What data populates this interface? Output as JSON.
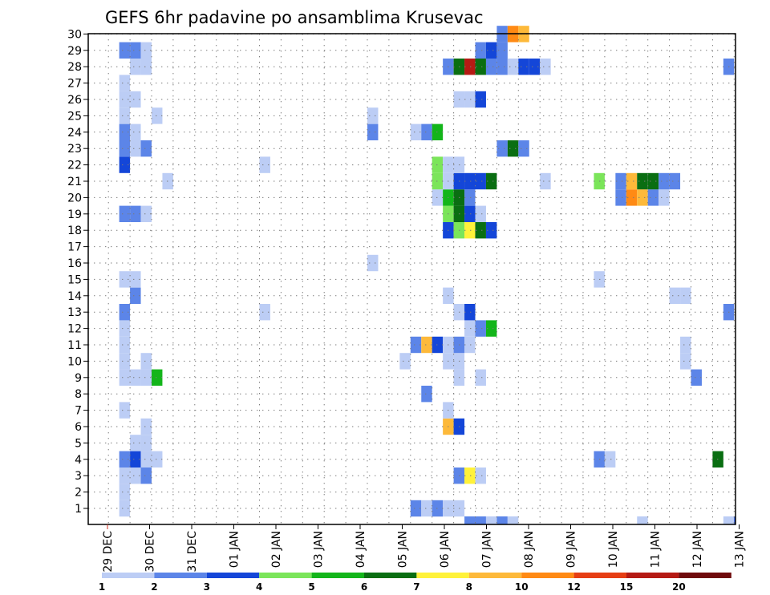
{
  "chart_data": {
    "type": "heatmap",
    "title": "GEFS 6hr padavine po ansamblima Krusevac",
    "xlabel": "",
    "ylabel": "",
    "x_unit": "6-hour steps from 29 DEC 00Z",
    "xlim": [
      0,
      60
    ],
    "y_tick_labels": [
      "1",
      "2",
      "3",
      "4",
      "5",
      "6",
      "7",
      "8",
      "9",
      "10",
      "11",
      "12",
      "13",
      "14",
      "15",
      "16",
      "17",
      "18",
      "19",
      "20",
      "21",
      "22",
      "23",
      "24",
      "25",
      "26",
      "27",
      "28",
      "29",
      "30"
    ],
    "ylim": [
      0,
      30
    ],
    "x_tick_labels": [
      "29 DEC",
      "30 DEC",
      "31 DEC",
      "01 JAN",
      "02 JAN",
      "03 JAN",
      "04 JAN",
      "05 JAN",
      "06 JAN",
      "07 JAN",
      "08 JAN",
      "09 JAN",
      "10 JAN",
      "11 JAN",
      "12 JAN",
      "13 JAN"
    ],
    "grid": true,
    "colorbar": {
      "ticks": [
        "1",
        "2",
        "3",
        "4",
        "5",
        "6",
        "7",
        "8",
        "10",
        "12",
        "15",
        "20"
      ],
      "colors": [
        "#bccdf5",
        "#5c85e8",
        "#1446d8",
        "#7be55a",
        "#13b51a",
        "#0a6e12",
        "#fff23a",
        "#fdb93a",
        "#ff8a14",
        "#e63e14",
        "#b51a14",
        "#6f0a0c"
      ]
    },
    "cells_note": "each cell: [member, step, color_class]; step i spans x from i to i+1",
    "cells": [
      [
        1,
        1,
        0
      ],
      [
        1,
        28,
        1
      ],
      [
        1,
        29,
        0
      ],
      [
        1,
        30,
        1
      ],
      [
        1,
        31,
        0
      ],
      [
        1,
        32,
        0
      ],
      [
        2,
        1,
        0
      ],
      [
        3,
        1,
        0
      ],
      [
        3,
        2,
        0
      ],
      [
        3,
        3,
        1
      ],
      [
        3,
        32,
        1
      ],
      [
        3,
        33,
        6
      ],
      [
        3,
        34,
        0
      ],
      [
        4,
        1,
        1
      ],
      [
        4,
        2,
        2
      ],
      [
        4,
        3,
        0
      ],
      [
        4,
        4,
        0
      ],
      [
        4,
        45,
        1
      ],
      [
        4,
        46,
        0
      ],
      [
        4,
        56,
        5
      ],
      [
        5,
        2,
        0
      ],
      [
        5,
        3,
        0
      ],
      [
        6,
        3,
        0
      ],
      [
        6,
        31,
        7
      ],
      [
        6,
        32,
        2
      ],
      [
        7,
        1,
        0
      ],
      [
        7,
        31,
        0
      ],
      [
        8,
        29,
        1
      ],
      [
        9,
        1,
        0
      ],
      [
        9,
        2,
        0
      ],
      [
        9,
        3,
        0
      ],
      [
        9,
        4,
        4
      ],
      [
        9,
        32,
        0
      ],
      [
        9,
        34,
        0
      ],
      [
        9,
        54,
        1
      ],
      [
        10,
        1,
        0
      ],
      [
        10,
        3,
        0
      ],
      [
        10,
        27,
        0
      ],
      [
        10,
        31,
        0
      ],
      [
        10,
        32,
        0
      ],
      [
        10,
        53,
        0
      ],
      [
        11,
        1,
        0
      ],
      [
        11,
        28,
        1
      ],
      [
        11,
        29,
        7
      ],
      [
        11,
        30,
        2
      ],
      [
        11,
        31,
        0
      ],
      [
        11,
        32,
        1
      ],
      [
        11,
        33,
        0
      ],
      [
        11,
        53,
        0
      ],
      [
        12,
        1,
        0
      ],
      [
        12,
        33,
        0
      ],
      [
        12,
        34,
        1
      ],
      [
        12,
        35,
        4
      ],
      [
        13,
        1,
        1
      ],
      [
        13,
        14,
        0
      ],
      [
        13,
        32,
        0
      ],
      [
        13,
        33,
        2
      ],
      [
        13,
        57,
        1
      ],
      [
        14,
        2,
        1
      ],
      [
        14,
        31,
        0
      ],
      [
        14,
        52,
        0
      ],
      [
        14,
        53,
        0
      ],
      [
        15,
        1,
        0
      ],
      [
        15,
        2,
        0
      ],
      [
        15,
        45,
        0
      ],
      [
        16,
        24,
        0
      ],
      [
        18,
        31,
        2
      ],
      [
        18,
        32,
        3
      ],
      [
        18,
        33,
        6
      ],
      [
        18,
        34,
        5
      ],
      [
        18,
        35,
        2
      ],
      [
        19,
        1,
        1
      ],
      [
        19,
        2,
        1
      ],
      [
        19,
        3,
        0
      ],
      [
        19,
        31,
        3
      ],
      [
        19,
        32,
        5
      ],
      [
        19,
        33,
        2
      ],
      [
        19,
        34,
        0
      ],
      [
        20,
        30,
        0
      ],
      [
        20,
        31,
        4
      ],
      [
        20,
        32,
        5
      ],
      [
        20,
        33,
        1
      ],
      [
        20,
        47,
        1
      ],
      [
        20,
        48,
        8
      ],
      [
        20,
        49,
        7
      ],
      [
        20,
        50,
        1
      ],
      [
        20,
        51,
        0
      ],
      [
        21,
        5,
        0
      ],
      [
        21,
        30,
        3
      ],
      [
        21,
        31,
        0
      ],
      [
        21,
        32,
        2
      ],
      [
        21,
        33,
        2
      ],
      [
        21,
        34,
        2
      ],
      [
        21,
        35,
        5
      ],
      [
        21,
        40,
        0
      ],
      [
        21,
        45,
        3
      ],
      [
        21,
        47,
        1
      ],
      [
        21,
        48,
        7
      ],
      [
        21,
        49,
        5
      ],
      [
        21,
        50,
        5
      ],
      [
        21,
        51,
        1
      ],
      [
        21,
        52,
        1
      ],
      [
        22,
        1,
        2
      ],
      [
        22,
        14,
        0
      ],
      [
        22,
        30,
        3
      ],
      [
        22,
        31,
        0
      ],
      [
        22,
        32,
        0
      ],
      [
        23,
        1,
        1
      ],
      [
        23,
        2,
        0
      ],
      [
        23,
        3,
        1
      ],
      [
        23,
        36,
        1
      ],
      [
        23,
        37,
        5
      ],
      [
        23,
        38,
        1
      ],
      [
        24,
        1,
        1
      ],
      [
        24,
        2,
        0
      ],
      [
        24,
        24,
        1
      ],
      [
        24,
        28,
        0
      ],
      [
        24,
        29,
        1
      ],
      [
        24,
        30,
        4
      ],
      [
        25,
        1,
        0
      ],
      [
        25,
        4,
        0
      ],
      [
        25,
        24,
        0
      ],
      [
        26,
        1,
        0
      ],
      [
        26,
        2,
        0
      ],
      [
        26,
        32,
        0
      ],
      [
        26,
        33,
        0
      ],
      [
        26,
        34,
        2
      ],
      [
        27,
        1,
        0
      ],
      [
        28,
        2,
        0
      ],
      [
        28,
        3,
        0
      ],
      [
        28,
        31,
        1
      ],
      [
        28,
        32,
        5
      ],
      [
        28,
        33,
        10
      ],
      [
        28,
        34,
        5
      ],
      [
        28,
        35,
        1
      ],
      [
        28,
        36,
        1
      ],
      [
        28,
        37,
        0
      ],
      [
        28,
        38,
        2
      ],
      [
        28,
        39,
        2
      ],
      [
        28,
        40,
        0
      ],
      [
        28,
        57,
        1
      ],
      [
        29,
        1,
        1
      ],
      [
        29,
        2,
        1
      ],
      [
        29,
        3,
        0
      ],
      [
        29,
        34,
        1
      ],
      [
        29,
        35,
        2
      ],
      [
        29,
        36,
        1
      ],
      [
        30,
        36,
        1
      ],
      [
        30,
        37,
        8
      ],
      [
        30,
        38,
        7
      ]
    ],
    "bottom_row_cells": [
      [
        33,
        1
      ],
      [
        34,
        1
      ],
      [
        35,
        0
      ],
      [
        36,
        1
      ],
      [
        37,
        0
      ],
      [
        49,
        0
      ],
      [
        57,
        0
      ],
      [
        58,
        2
      ]
    ]
  }
}
